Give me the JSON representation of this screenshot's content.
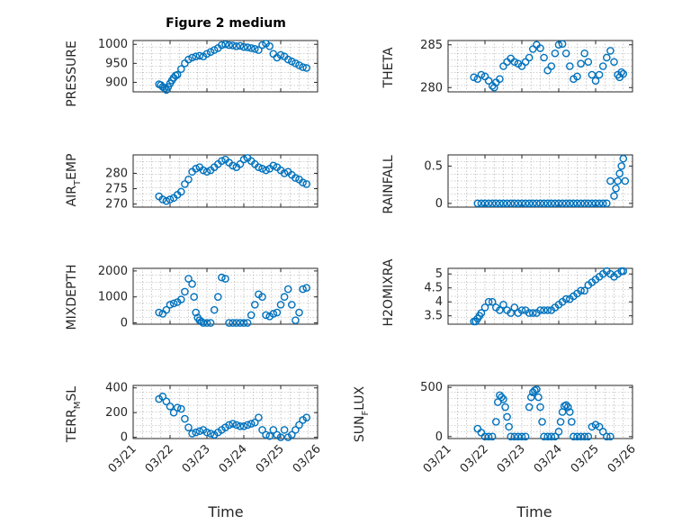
{
  "chart_data": [
    {
      "id": "pressure",
      "type": "scatter",
      "title": "Figure 2 medium",
      "ylabel": "PRESSURE",
      "ylim": [
        875,
        1010
      ],
      "yticks": [
        900,
        950,
        1000
      ],
      "xlim": [
        0,
        5
      ],
      "grid": true,
      "x": [
        0.7,
        0.75,
        0.8,
        0.85,
        0.9,
        0.95,
        1.0,
        1.05,
        1.1,
        1.15,
        1.2,
        1.3,
        1.4,
        1.5,
        1.6,
        1.7,
        1.8,
        1.9,
        2.0,
        2.1,
        2.2,
        2.3,
        2.4,
        2.5,
        2.6,
        2.7,
        2.8,
        2.9,
        3.0,
        3.1,
        3.2,
        3.3,
        3.4,
        3.5,
        3.6,
        3.7,
        3.8,
        3.9,
        4.0,
        4.1,
        4.2,
        4.3,
        4.4,
        4.5,
        4.6,
        4.7
      ],
      "y": [
        895,
        893,
        888,
        885,
        880,
        888,
        897,
        905,
        912,
        918,
        920,
        935,
        950,
        960,
        965,
        968,
        970,
        968,
        975,
        980,
        985,
        990,
        998,
        1000,
        998,
        997,
        995,
        996,
        993,
        992,
        990,
        988,
        985,
        998,
        1002,
        995,
        975,
        965,
        972,
        968,
        960,
        955,
        950,
        945,
        940,
        938
      ]
    },
    {
      "id": "theta",
      "type": "scatter",
      "title": "",
      "ylabel": "THETA",
      "ylim": [
        279.5,
        285.5
      ],
      "yticks": [
        280,
        285
      ],
      "xlim": [
        0,
        5
      ],
      "grid": true,
      "x": [
        0.7,
        0.8,
        0.9,
        1.0,
        1.1,
        1.2,
        1.25,
        1.3,
        1.4,
        1.5,
        1.6,
        1.7,
        1.8,
        1.9,
        2.0,
        2.1,
        2.2,
        2.3,
        2.4,
        2.5,
        2.6,
        2.7,
        2.8,
        2.9,
        3.0,
        3.1,
        3.2,
        3.3,
        3.4,
        3.5,
        3.6,
        3.7,
        3.8,
        3.9,
        4.0,
        4.1,
        4.2,
        4.3,
        4.4,
        4.5,
        4.6,
        4.65,
        4.7,
        4.75
      ],
      "y": [
        281.2,
        281.0,
        281.5,
        281.3,
        280.8,
        280.2,
        280.0,
        280.6,
        281.0,
        282.5,
        283.0,
        283.4,
        283.0,
        282.8,
        282.5,
        283.0,
        283.5,
        284.5,
        285.0,
        284.6,
        283.5,
        282.0,
        282.5,
        284.0,
        285.0,
        285.1,
        284.0,
        282.5,
        281.0,
        281.3,
        282.8,
        284.0,
        283.0,
        281.5,
        280.8,
        281.5,
        282.5,
        283.5,
        284.3,
        283.0,
        281.5,
        281.2,
        281.8,
        281.6
      ]
    },
    {
      "id": "airtemp",
      "type": "scatter",
      "title": "",
      "ylabel": "AIR_TEMP",
      "ylim": [
        269,
        286
      ],
      "yticks": [
        270,
        275,
        280
      ],
      "xlim": [
        0,
        5
      ],
      "grid": true,
      "x": [
        0.7,
        0.8,
        0.9,
        1.0,
        1.1,
        1.2,
        1.3,
        1.4,
        1.5,
        1.6,
        1.7,
        1.8,
        1.9,
        2.0,
        2.1,
        2.2,
        2.3,
        2.4,
        2.5,
        2.6,
        2.7,
        2.8,
        2.9,
        3.0,
        3.1,
        3.2,
        3.3,
        3.4,
        3.5,
        3.6,
        3.7,
        3.8,
        3.9,
        4.0,
        4.1,
        4.2,
        4.3,
        4.4,
        4.5,
        4.6,
        4.7
      ],
      "y": [
        272.5,
        271.5,
        271.0,
        271.5,
        272.0,
        273.0,
        274.0,
        276.5,
        278.0,
        280.5,
        281.5,
        282.0,
        281.0,
        280.5,
        281.0,
        282.0,
        283.0,
        284.0,
        284.5,
        283.5,
        282.5,
        282.0,
        283.0,
        284.5,
        285.0,
        284.0,
        283.0,
        282.0,
        281.5,
        281.0,
        281.5,
        282.5,
        282.0,
        281.0,
        280.0,
        280.5,
        279.5,
        278.5,
        278.0,
        277.0,
        276.5
      ]
    },
    {
      "id": "rainfall",
      "type": "scatter",
      "title": "",
      "ylabel": "RAINFALL",
      "ylim": [
        -0.05,
        0.65
      ],
      "yticks": [
        0,
        0.5
      ],
      "xlim": [
        0,
        5
      ],
      "grid": true,
      "x": [
        0.8,
        0.9,
        1.0,
        1.1,
        1.2,
        1.3,
        1.4,
        1.5,
        1.6,
        1.7,
        1.8,
        1.9,
        2.0,
        2.1,
        2.2,
        2.3,
        2.4,
        2.5,
        2.6,
        2.7,
        2.8,
        2.9,
        3.0,
        3.1,
        3.2,
        3.3,
        3.4,
        3.5,
        3.6,
        3.7,
        3.8,
        3.9,
        4.0,
        4.1,
        4.2,
        4.3,
        4.4,
        4.5,
        4.55,
        4.6,
        4.65,
        4.7,
        4.75,
        4.8
      ],
      "y": [
        0,
        0,
        0,
        0,
        0,
        0,
        0,
        0,
        0,
        0,
        0,
        0,
        0,
        0,
        0,
        0,
        0,
        0,
        0,
        0,
        0,
        0,
        0,
        0,
        0,
        0,
        0,
        0,
        0,
        0,
        0,
        0,
        0,
        0,
        0,
        0,
        0.3,
        0.1,
        0.2,
        0.3,
        0.4,
        0.5,
        0.6,
        0.3
      ]
    },
    {
      "id": "mixdepth",
      "type": "scatter",
      "title": "",
      "ylabel": "MIXDEPTH",
      "ylim": [
        -50,
        2100
      ],
      "yticks": [
        0,
        1000,
        2000
      ],
      "xlim": [
        0,
        5
      ],
      "grid": true,
      "x": [
        0.7,
        0.8,
        0.9,
        1.0,
        1.1,
        1.2,
        1.3,
        1.4,
        1.5,
        1.6,
        1.65,
        1.7,
        1.75,
        1.8,
        1.85,
        1.9,
        2.0,
        2.1,
        2.2,
        2.3,
        2.4,
        2.5,
        2.6,
        2.7,
        2.8,
        2.9,
        3.0,
        3.1,
        3.2,
        3.3,
        3.4,
        3.5,
        3.6,
        3.7,
        3.8,
        3.9,
        4.0,
        4.1,
        4.2,
        4.3,
        4.4,
        4.5,
        4.6,
        4.7
      ],
      "y": [
        400,
        350,
        500,
        700,
        750,
        800,
        900,
        1200,
        1700,
        1500,
        1000,
        400,
        200,
        100,
        50,
        0,
        0,
        0,
        500,
        1000,
        1750,
        1700,
        0,
        0,
        0,
        0,
        0,
        0,
        300,
        700,
        1100,
        1000,
        300,
        250,
        350,
        400,
        700,
        1000,
        1300,
        700,
        100,
        400,
        1300,
        1350
      ]
    },
    {
      "id": "h2omixra",
      "type": "scatter",
      "title": "",
      "ylabel": "H2OMIXRA",
      "ylim": [
        3.2,
        5.2
      ],
      "yticks": [
        3.5,
        4,
        4.5,
        5
      ],
      "xlim": [
        0,
        5
      ],
      "grid": true,
      "x": [
        0.7,
        0.75,
        0.8,
        0.85,
        0.9,
        1.0,
        1.1,
        1.2,
        1.3,
        1.4,
        1.5,
        1.6,
        1.7,
        1.8,
        1.9,
        2.0,
        2.1,
        2.2,
        2.3,
        2.4,
        2.5,
        2.6,
        2.7,
        2.8,
        2.9,
        3.0,
        3.1,
        3.2,
        3.3,
        3.4,
        3.5,
        3.6,
        3.7,
        3.8,
        3.9,
        4.0,
        4.1,
        4.2,
        4.3,
        4.4,
        4.5,
        4.6,
        4.7,
        4.75
      ],
      "y": [
        3.3,
        3.3,
        3.4,
        3.5,
        3.6,
        3.8,
        4.0,
        4.0,
        3.8,
        3.7,
        3.9,
        3.7,
        3.6,
        3.8,
        3.6,
        3.7,
        3.7,
        3.6,
        3.6,
        3.6,
        3.7,
        3.7,
        3.7,
        3.7,
        3.8,
        3.9,
        4.0,
        4.1,
        4.1,
        4.2,
        4.3,
        4.4,
        4.4,
        4.6,
        4.7,
        4.8,
        4.9,
        5.0,
        5.1,
        5.0,
        4.9,
        5.0,
        5.1,
        5.1
      ]
    },
    {
      "id": "terrmsl",
      "type": "scatter",
      "title": "",
      "ylabel": "TERR_MSL",
      "ylim": [
        -10,
        420
      ],
      "yticks": [
        0,
        200,
        400
      ],
      "xlim": [
        0,
        5
      ],
      "grid": true,
      "x": [
        0.7,
        0.8,
        0.9,
        1.0,
        1.1,
        1.2,
        1.3,
        1.4,
        1.5,
        1.6,
        1.7,
        1.8,
        1.9,
        2.0,
        2.1,
        2.2,
        2.3,
        2.4,
        2.5,
        2.6,
        2.7,
        2.8,
        2.9,
        3.0,
        3.1,
        3.2,
        3.3,
        3.4,
        3.5,
        3.6,
        3.7,
        3.8,
        3.9,
        4.0,
        4.1,
        4.2,
        4.3,
        4.4,
        4.5,
        4.6,
        4.7
      ],
      "y": [
        310,
        330,
        290,
        250,
        200,
        240,
        230,
        150,
        80,
        30,
        40,
        50,
        60,
        40,
        30,
        20,
        40,
        60,
        80,
        100,
        110,
        100,
        90,
        90,
        100,
        110,
        120,
        160,
        60,
        20,
        10,
        60,
        20,
        0,
        60,
        0,
        20,
        60,
        100,
        140,
        160
      ]
    },
    {
      "id": "sunflux",
      "type": "scatter",
      "title": "",
      "ylabel": "SUN_FLUX",
      "ylim": [
        -20,
        520
      ],
      "yticks": [
        0,
        500
      ],
      "xlim": [
        0,
        5
      ],
      "grid": true,
      "x": [
        0.8,
        0.9,
        1.0,
        1.1,
        1.2,
        1.3,
        1.35,
        1.4,
        1.45,
        1.5,
        1.55,
        1.6,
        1.65,
        1.7,
        1.8,
        1.9,
        2.0,
        2.1,
        2.2,
        2.25,
        2.3,
        2.35,
        2.4,
        2.45,
        2.5,
        2.55,
        2.6,
        2.7,
        2.8,
        2.9,
        3.0,
        3.05,
        3.1,
        3.15,
        3.2,
        3.25,
        3.3,
        3.35,
        3.4,
        3.5,
        3.6,
        3.7,
        3.8,
        3.9,
        4.0,
        4.1,
        4.2,
        4.3,
        4.4
      ],
      "y": [
        80,
        40,
        0,
        0,
        0,
        150,
        350,
        420,
        400,
        380,
        300,
        200,
        100,
        0,
        0,
        0,
        0,
        0,
        300,
        400,
        450,
        470,
        480,
        400,
        300,
        150,
        0,
        0,
        0,
        0,
        50,
        150,
        250,
        310,
        320,
        300,
        250,
        150,
        0,
        0,
        0,
        0,
        0,
        100,
        120,
        100,
        50,
        0,
        0
      ]
    }
  ],
  "xtick_labels": [
    "03/21",
    "03/22",
    "03/23",
    "03/24",
    "03/25",
    "03/26"
  ],
  "xlabel": "Time",
  "marker_color": "#0072bd"
}
